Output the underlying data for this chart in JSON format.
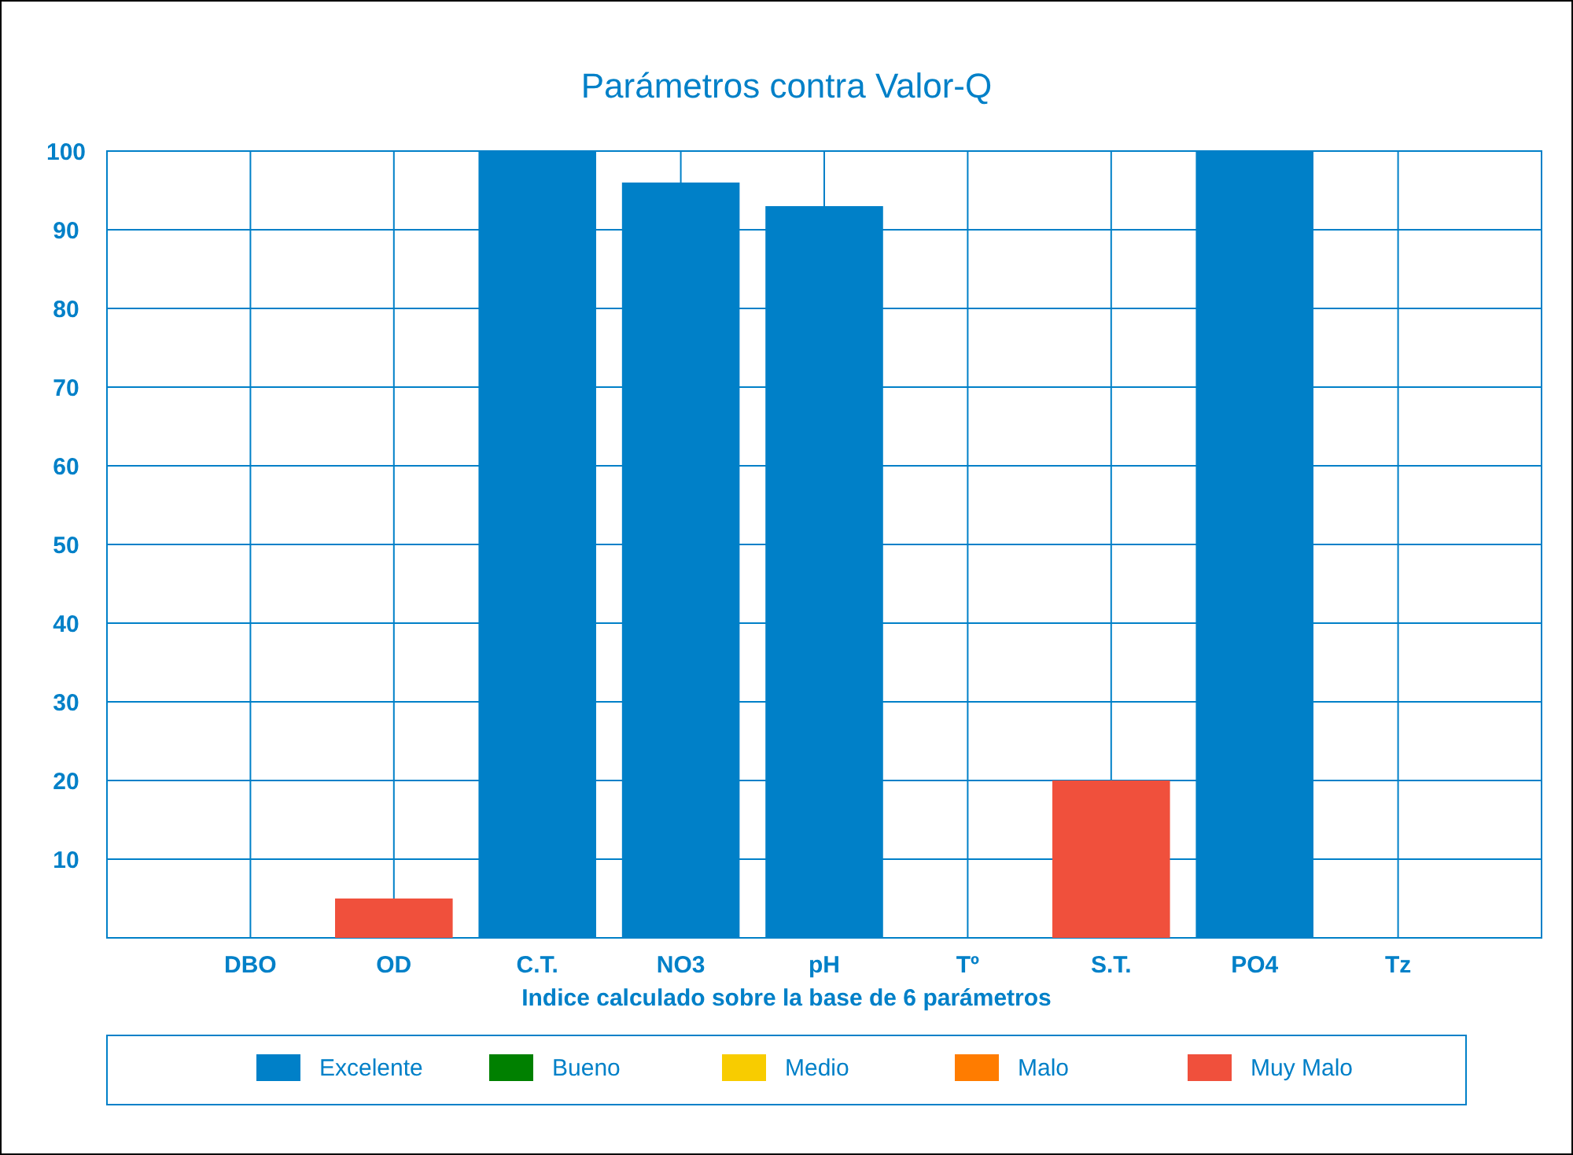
{
  "chart_data": {
    "type": "bar",
    "title": "Parámetros contra Valor-Q",
    "xlabel": "Indice calculado sobre la base de 6 parámetros",
    "categories": [
      "DBO",
      "OD",
      "C.T.",
      "NO3",
      "pH",
      "Tº",
      "S.T.",
      "PO4",
      "Tz"
    ],
    "series": [
      {
        "name": "Excelente",
        "color": "#0080c8",
        "values": [
          null,
          null,
          100,
          96,
          93,
          null,
          null,
          100,
          null
        ]
      },
      {
        "name": "Bueno",
        "color": "#008000",
        "values": [
          null,
          null,
          null,
          null,
          null,
          null,
          null,
          null,
          null
        ]
      },
      {
        "name": "Medio",
        "color": "#f8cc00",
        "values": [
          null,
          null,
          null,
          null,
          null,
          null,
          null,
          null,
          null
        ]
      },
      {
        "name": "Malo",
        "color": "#ff7c00",
        "values": [
          null,
          null,
          null,
          null,
          null,
          null,
          null,
          null,
          null
        ]
      },
      {
        "name": "Muy Malo",
        "color": "#f0503c",
        "values": [
          null,
          5,
          null,
          null,
          null,
          null,
          20,
          null,
          null
        ]
      }
    ],
    "ylim": [
      0,
      100
    ],
    "yticks": [
      10,
      20,
      30,
      40,
      50,
      60,
      70,
      80,
      90,
      100
    ],
    "grid": true,
    "legend": "bottom"
  }
}
